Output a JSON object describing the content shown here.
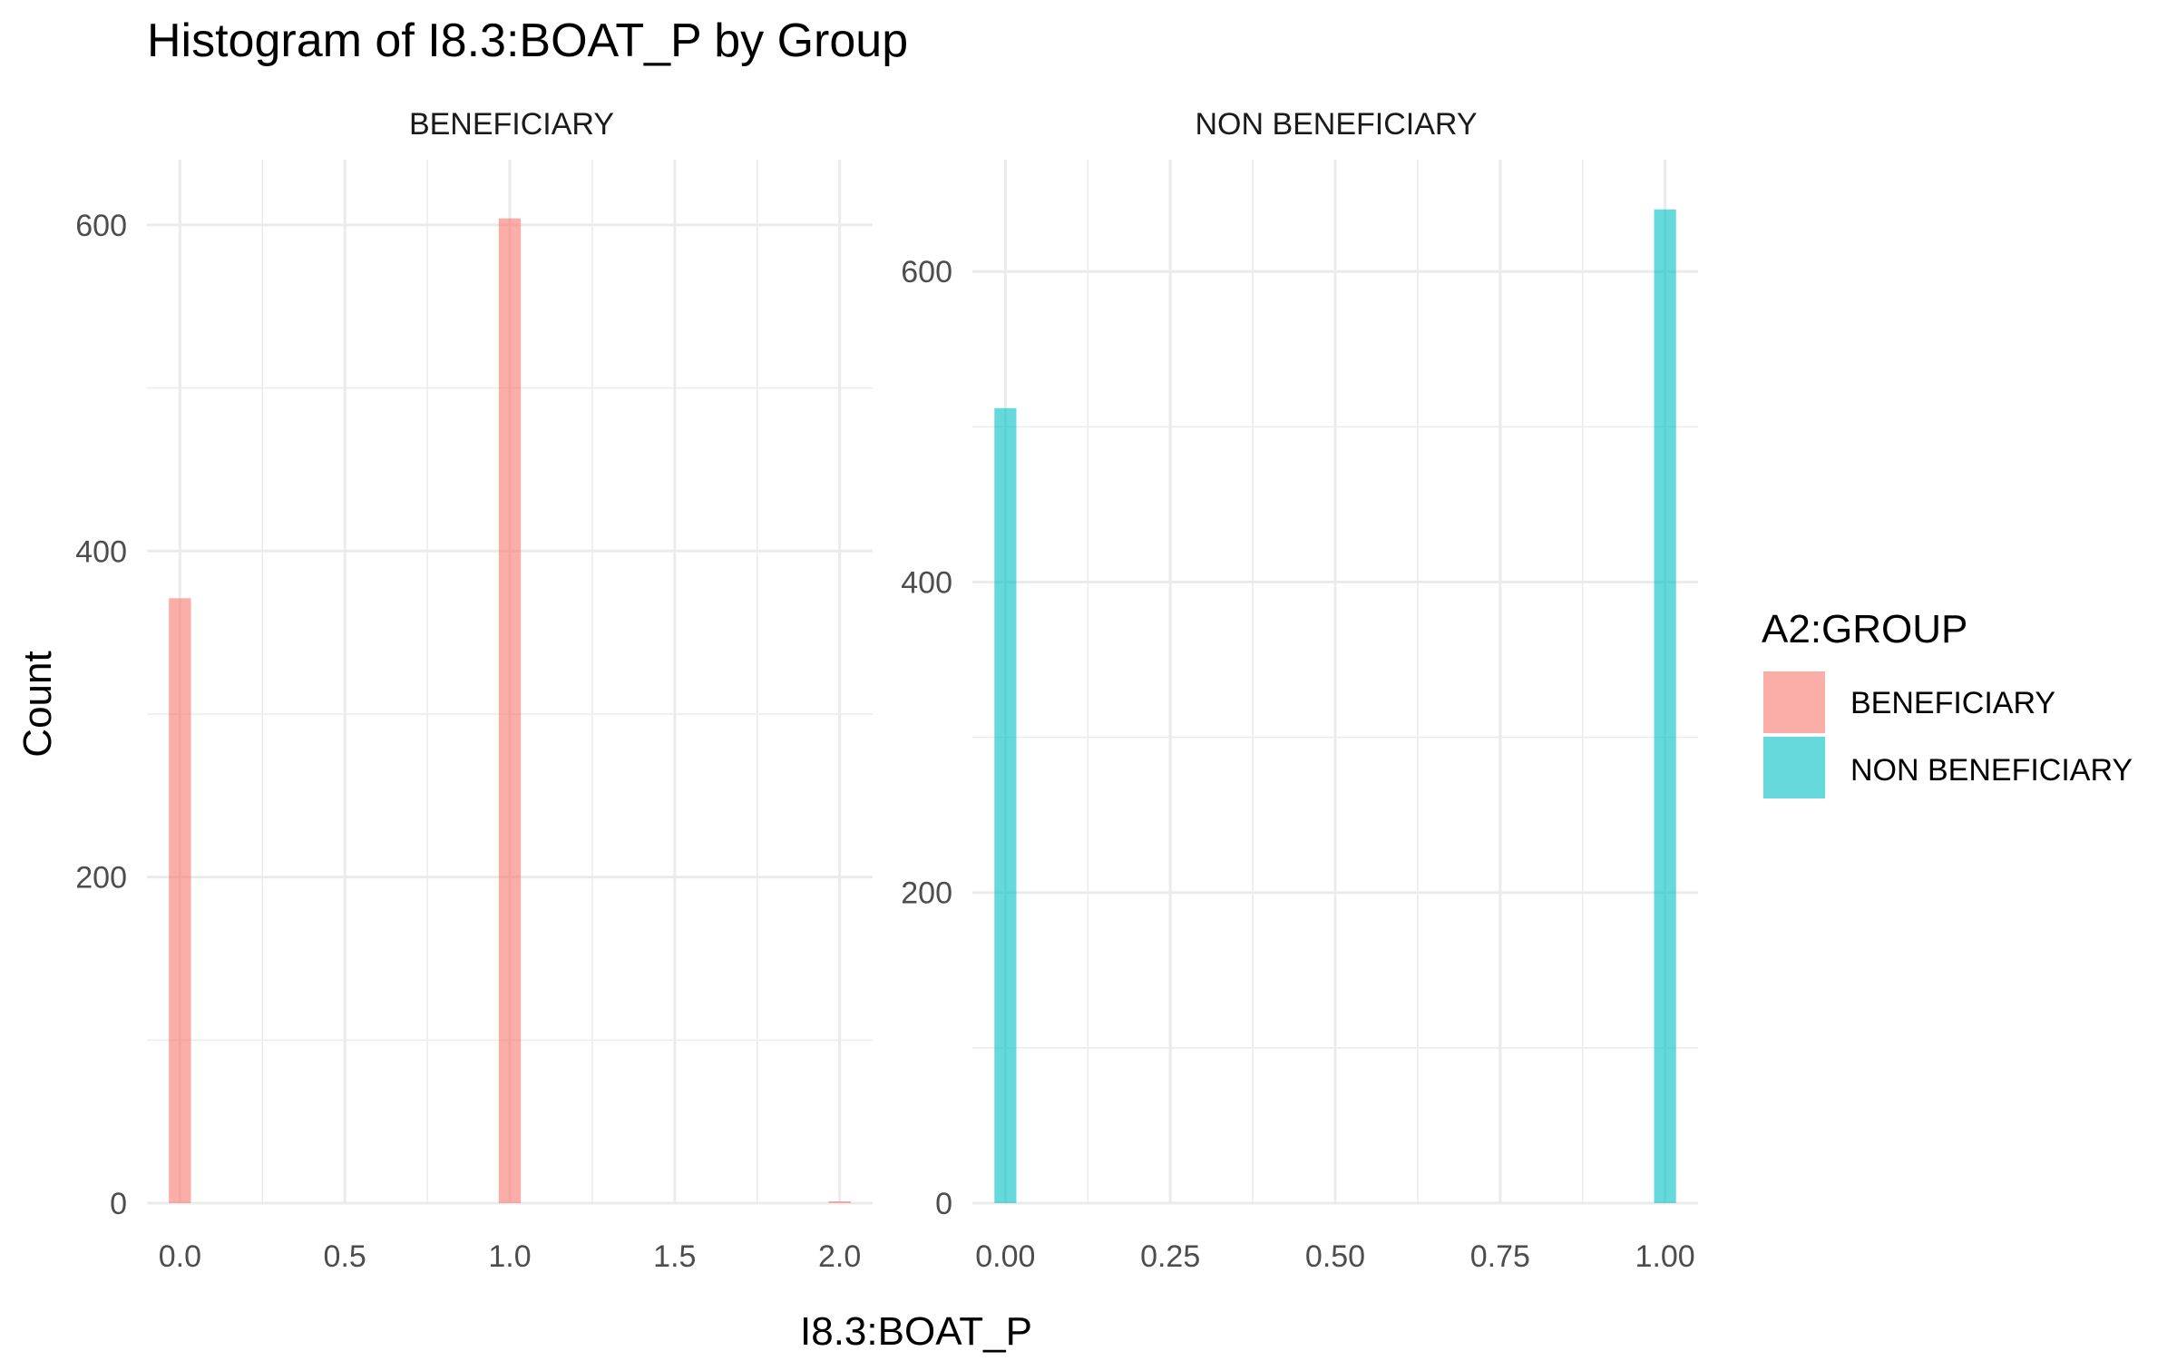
{
  "chart_data": {
    "type": "bar",
    "title": "Histogram of I8.3:BOAT_P by Group",
    "xlabel": "I8.3:BOAT_P",
    "ylabel": "Count",
    "legend": {
      "title": "A2:GROUP",
      "placement": "right",
      "entries": [
        {
          "label": "BENEFICIARY",
          "color": "#f8766d"
        },
        {
          "label": "NON BENEFICIARY",
          "color": "#00bfc4"
        }
      ]
    },
    "grid": true,
    "facets": [
      {
        "label": "BENEFICIARY",
        "color": "#f8766d",
        "xlim": [
          -0.1,
          2.1
        ],
        "ylim": [
          0,
          640
        ],
        "x_ticks": [
          0.0,
          0.5,
          1.0,
          1.5,
          2.0
        ],
        "x_tick_labels": [
          "0.0",
          "0.5",
          "1.0",
          "1.5",
          "2.0"
        ],
        "y_ticks": [
          0,
          200,
          400,
          600
        ],
        "y_tick_labels": [
          "0",
          "200",
          "400",
          "600"
        ],
        "bin_width": 0.067,
        "bars": [
          {
            "x": 0,
            "count": 371
          },
          {
            "x": 1,
            "count": 604
          },
          {
            "x": 2,
            "count": 1
          }
        ]
      },
      {
        "label": "NON BENEFICIARY",
        "color": "#00bfc4",
        "xlim": [
          -0.05,
          1.05
        ],
        "ylim": [
          0,
          672
        ],
        "x_ticks": [
          0.0,
          0.25,
          0.5,
          0.75,
          1.0
        ],
        "x_tick_labels": [
          "0.00",
          "0.25",
          "0.50",
          "0.75",
          "1.00"
        ],
        "y_ticks": [
          0,
          200,
          400,
          600
        ],
        "y_tick_labels": [
          "0",
          "200",
          "400",
          "600"
        ],
        "bin_width": 0.0333,
        "bars": [
          {
            "x": 0,
            "count": 512
          },
          {
            "x": 1,
            "count": 640
          }
        ]
      }
    ]
  }
}
